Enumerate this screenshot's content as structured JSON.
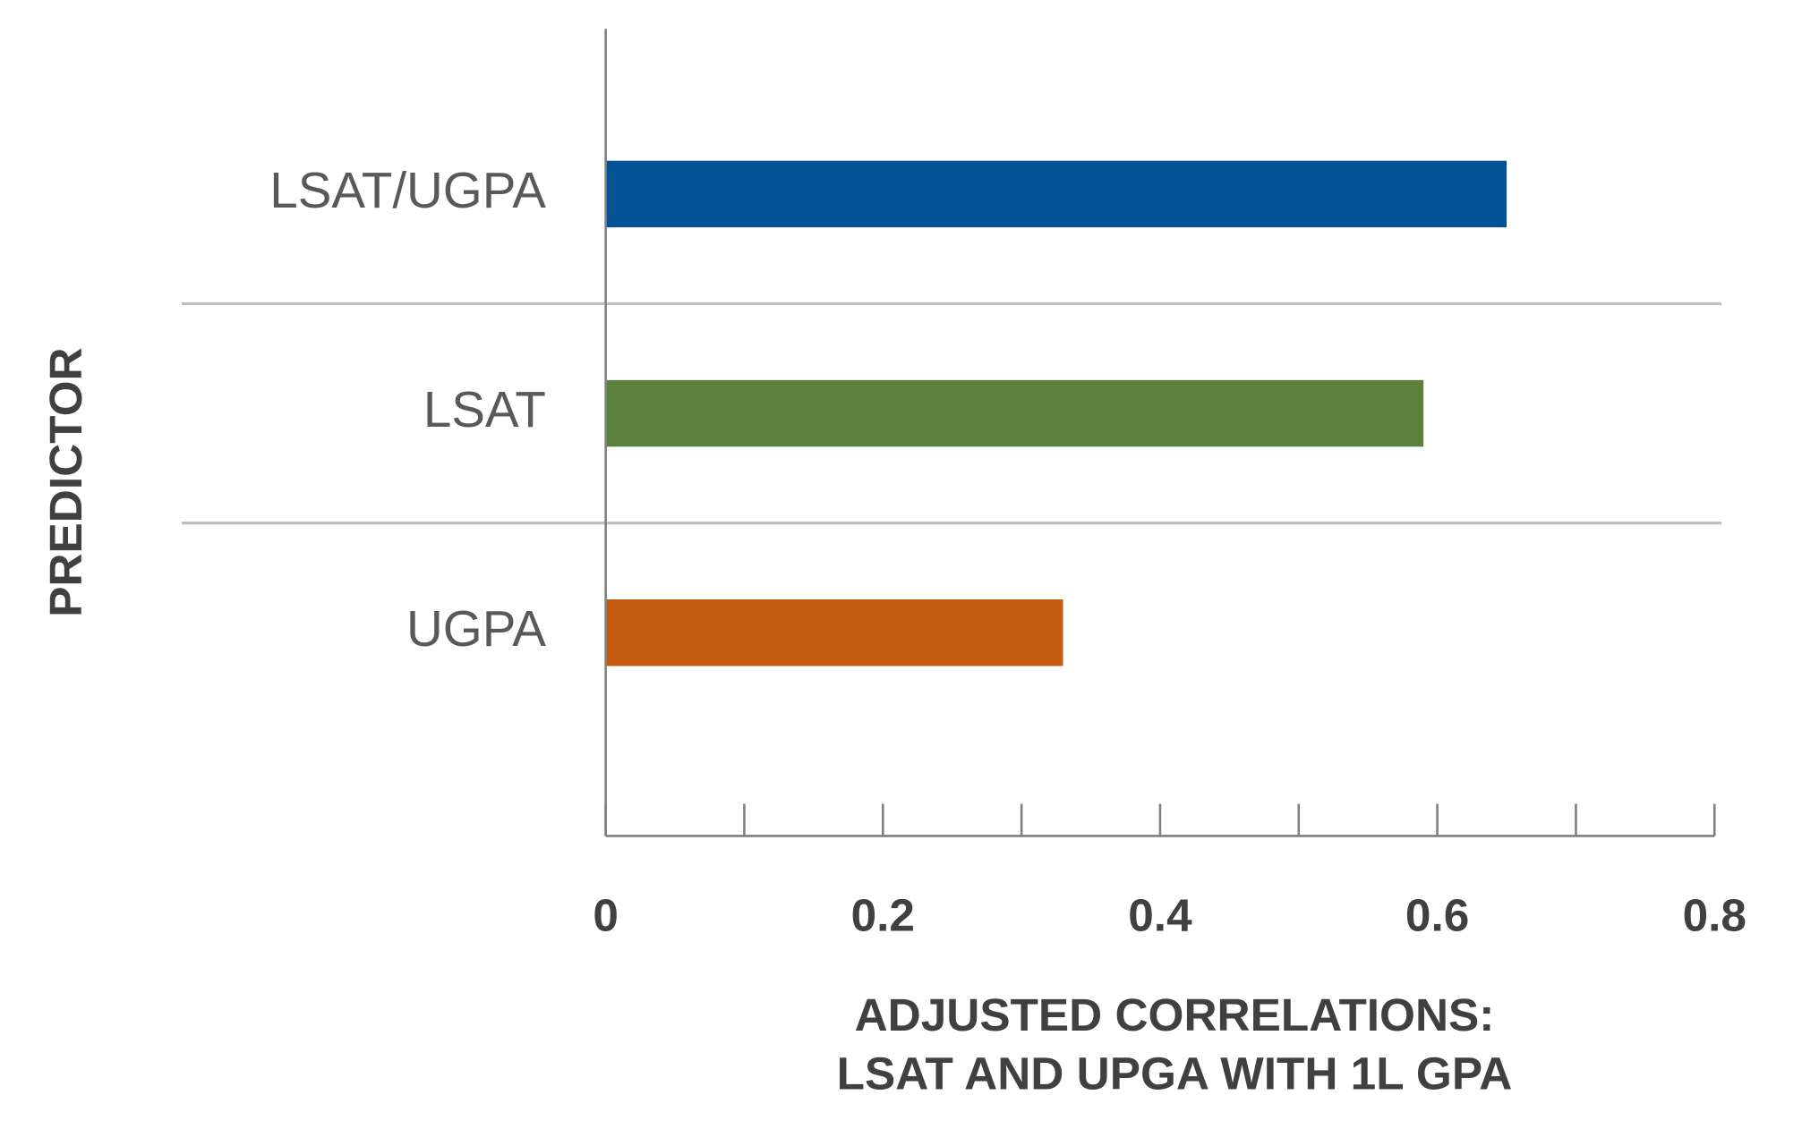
{
  "chart_data": {
    "type": "barh",
    "categories": [
      "LSAT/UGPA",
      "LSAT",
      "UGPA"
    ],
    "values": [
      0.65,
      0.59,
      0.33
    ],
    "colors": [
      "#035394",
      "#5a823b",
      "#c55a11"
    ],
    "xlim": [
      0,
      0.8
    ],
    "xticks": [
      0,
      0.2,
      0.4,
      0.6,
      0.8
    ],
    "minor_xticks": [
      0.1,
      0.3,
      0.5,
      0.7
    ],
    "xlabel": [
      "ADJUSTED CORRELATIONS:",
      "LSAT AND UPGA WITH 1L GPA"
    ],
    "ylabel": "PREDICTOR"
  }
}
